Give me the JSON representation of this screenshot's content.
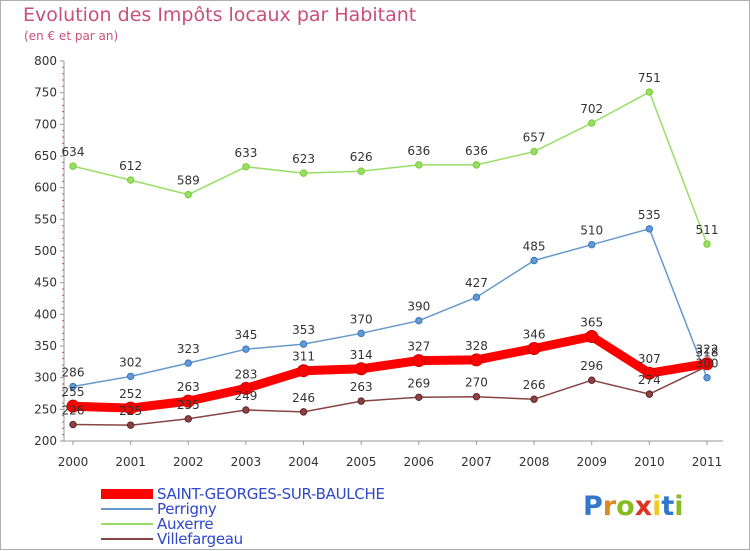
{
  "chart_data": {
    "type": "line",
    "title": "Evolution des Impôts locaux par Habitant",
    "subtitle": "(en € et par an)",
    "xlabel": "",
    "ylabel": "",
    "x": [
      "2000",
      "2001",
      "2002",
      "2003",
      "2004",
      "2005",
      "2006",
      "2007",
      "2008",
      "2009",
      "2010",
      "2011"
    ],
    "ylim": [
      200,
      800
    ],
    "yticks": [
      200,
      250,
      300,
      350,
      400,
      450,
      500,
      550,
      600,
      650,
      700,
      750,
      800
    ],
    "grid": false,
    "legend_position": "bottom-left",
    "series": [
      {
        "name": "SAINT-GEORGES-SUR-BAULCHE",
        "color": "#ff0000",
        "marker_color": "#cc0000",
        "emphasis": "thick",
        "values": [
          255,
          252,
          263,
          283,
          311,
          314,
          327,
          328,
          346,
          365,
          307,
          322
        ],
        "labels": [
          "255",
          "252",
          "263",
          "283",
          "311",
          "314",
          "327",
          "328",
          "346",
          "365",
          "307",
          "322"
        ]
      },
      {
        "name": "Perrigny",
        "color": "#6699cc",
        "marker_color": "#3377cc",
        "emphasis": "normal",
        "values": [
          286,
          302,
          323,
          345,
          353,
          370,
          390,
          427,
          485,
          510,
          535,
          300
        ],
        "labels": [
          "286",
          "302",
          "323",
          "345",
          "353",
          "370",
          "390",
          "427",
          "485",
          "510",
          "535",
          "300"
        ]
      },
      {
        "name": "Auxerre",
        "color": "#99dd66",
        "marker_color": "#77cc33",
        "emphasis": "normal",
        "values": [
          634,
          612,
          589,
          633,
          623,
          626,
          636,
          636,
          657,
          702,
          751,
          511
        ],
        "labels": [
          "634",
          "612",
          "589",
          "633",
          "623",
          "626",
          "636",
          "636",
          "657",
          "702",
          "751",
          "511"
        ]
      },
      {
        "name": "Villefargeau",
        "color": "#884444",
        "marker_color": "#662222",
        "emphasis": "normal",
        "values": [
          226,
          225,
          235,
          249,
          246,
          263,
          269,
          270,
          266,
          296,
          274,
          318
        ],
        "labels": [
          "226",
          "225",
          "235",
          "249",
          "246",
          "263",
          "269",
          "270",
          "266",
          "296",
          "274",
          "318"
        ]
      }
    ]
  },
  "logo": {
    "text": "Proxiti",
    "letter_colors": [
      "#3377cc",
      "#dd8822",
      "#88bb22",
      "#dd3322",
      "#eecc22",
      "#3377cc",
      "#88bb22"
    ]
  }
}
